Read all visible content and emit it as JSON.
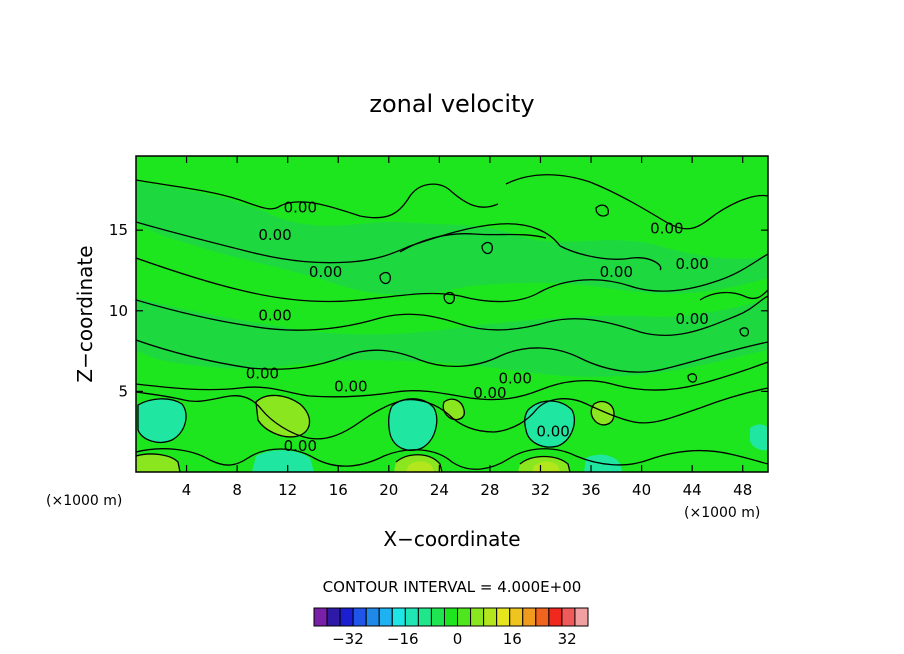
{
  "chart_data": {
    "type": "contour",
    "title": "zonal velocity",
    "xlabel": "X−coordinate",
    "ylabel": "Z−coordinate",
    "x_unit": "(×1000 m)",
    "y_unit": "(×1000 m)",
    "xlim": [
      0,
      50
    ],
    "ylim": [
      0,
      19.6
    ],
    "x_ticks": [
      4,
      8,
      12,
      16,
      20,
      24,
      28,
      32,
      36,
      40,
      44,
      48
    ],
    "y_ticks": [
      5,
      10,
      15
    ],
    "contour_interval_text": "CONTOUR INTERVAL = 4.000E+00",
    "contour_labels": [
      {
        "text": "0.00",
        "x": 13,
        "z": 16.4
      },
      {
        "text": "0.00",
        "x": 11,
        "z": 14.7
      },
      {
        "text": "0.00",
        "x": 15,
        "z": 12.4
      },
      {
        "text": "0.00",
        "x": 11,
        "z": 9.7
      },
      {
        "text": "0.00",
        "x": 10,
        "z": 6.1
      },
      {
        "text": "0.00",
        "x": 17,
        "z": 5.3
      },
      {
        "text": "0.00",
        "x": 13,
        "z": 1.6
      },
      {
        "text": "0.00",
        "x": 42,
        "z": 15.1
      },
      {
        "text": "0.00",
        "x": 38,
        "z": 12.4
      },
      {
        "text": "0.00",
        "x": 44,
        "z": 12.9
      },
      {
        "text": "0.00",
        "x": 44,
        "z": 9.5
      },
      {
        "text": "0.00",
        "x": 30,
        "z": 5.8
      },
      {
        "text": "0.00",
        "x": 28,
        "z": 4.9
      },
      {
        "text": "0.00",
        "x": 33,
        "z": 2.5
      }
    ],
    "colorbar": {
      "levels": [
        -40,
        -36,
        -32,
        -28,
        -24,
        -20,
        -16,
        -12,
        -8,
        -4,
        0,
        4,
        8,
        12,
        16,
        20,
        24,
        28,
        32,
        36,
        40
      ],
      "colors": [
        "#7a1fa8",
        "#2f1aa8",
        "#1b1fd1",
        "#1f55e8",
        "#1f88e8",
        "#1fb2f0",
        "#1fe6e6",
        "#1fe6b4",
        "#1fe68a",
        "#1fe650",
        "#1ee61e",
        "#50e61e",
        "#8ae61e",
        "#b4e61e",
        "#e6e61e",
        "#f0c41e",
        "#f09a1e",
        "#f0641e",
        "#f0281e",
        "#f05a5a",
        "#f0a0a0"
      ],
      "tick_labels": [
        "−32",
        "−16",
        "0",
        "16",
        "32"
      ],
      "tick_values": [
        -32,
        -16,
        0,
        16,
        32
      ]
    }
  }
}
